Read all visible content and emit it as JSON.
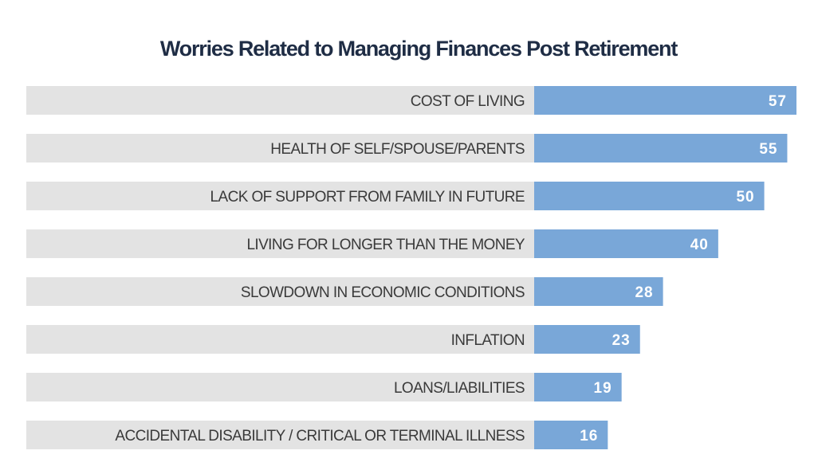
{
  "chart_data": {
    "type": "bar",
    "orientation": "horizontal",
    "title": "Worries Related to Managing Finances Post Retirement",
    "categories": [
      "COST OF LIVING",
      "HEALTH OF SELF/SPOUSE/PARENTS",
      "LACK OF SUPPORT FROM FAMILY IN  FUTURE",
      "LIVING FOR LONGER THAN THE  MONEY",
      "SLOWDOWN IN  ECONOMIC CONDITIONS",
      "INFLATION",
      "LOANS/LIABILITIES",
      "ACCIDENTAL DISABILITY / CRITICAL OR TERMINAL ILLNESS"
    ],
    "values": [
      57,
      55,
      50,
      40,
      28,
      23,
      19,
      16
    ],
    "xlim": [
      0,
      57
    ],
    "grid": false,
    "legend": "none",
    "colors": {
      "bar": "#79a7d8",
      "label_band": "#e3e3e3",
      "title": "#1f2d45",
      "category_text": "#3a3a3a",
      "value_text": "#ffffff"
    }
  }
}
